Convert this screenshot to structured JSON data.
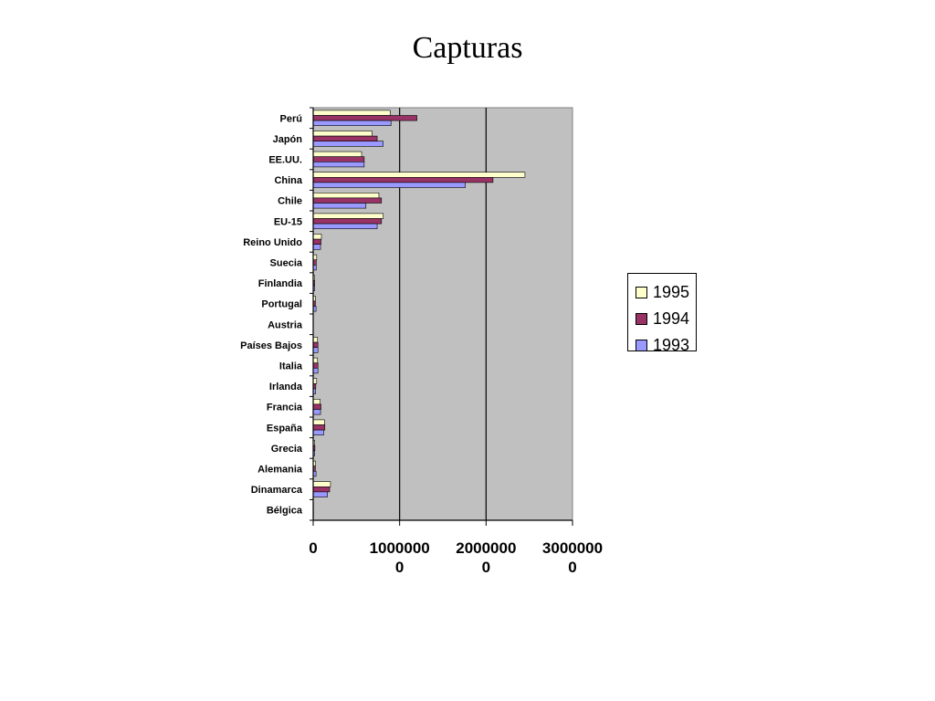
{
  "title": "Capturas",
  "chart_data": {
    "type": "bar",
    "orientation": "horizontal",
    "title": "Capturas",
    "xlabel": "",
    "ylabel": "",
    "xlim": [
      0,
      30000000
    ],
    "x_ticks": [
      {
        "value": 0,
        "lines": [
          "0"
        ]
      },
      {
        "value": 10000000,
        "lines": [
          "1000000",
          "0"
        ]
      },
      {
        "value": 20000000,
        "lines": [
          "2000000",
          "0"
        ]
      },
      {
        "value": 30000000,
        "lines": [
          "3000000",
          "0"
        ]
      }
    ],
    "grid": "vertical major lines",
    "legend_position": "right",
    "plot_background": "#c0c0c0",
    "categories": [
      "Perú",
      "Japón",
      "EE.UU.",
      "China",
      "Chile",
      "EU-15",
      "Reino Unido",
      "Suecia",
      "Finlandia",
      "Portugal",
      "Austria",
      "Países Bajos",
      "Italia",
      "Irlanda",
      "Francia",
      "España",
      "Grecia",
      "Alemania",
      "Dinamarca",
      "Bélgica"
    ],
    "series": [
      {
        "name": "1995",
        "color": "#ffffcc",
        "values": [
          8900000,
          6800000,
          5600000,
          24500000,
          7600000,
          8100000,
          950000,
          400000,
          170000,
          250000,
          0,
          500000,
          500000,
          400000,
          800000,
          1300000,
          170000,
          280000,
          2000000,
          30000
        ]
      },
      {
        "name": "1994",
        "color": "#993366",
        "values": [
          12000000,
          7400000,
          5900000,
          20800000,
          7900000,
          7900000,
          900000,
          350000,
          160000,
          260000,
          0,
          550000,
          550000,
          300000,
          900000,
          1350000,
          200000,
          250000,
          1900000,
          30000
        ]
      },
      {
        "name": "1993",
        "color": "#9999ff",
        "values": [
          9000000,
          8100000,
          5900000,
          17600000,
          6100000,
          7400000,
          850000,
          350000,
          180000,
          330000,
          0,
          550000,
          550000,
          280000,
          850000,
          1200000,
          180000,
          330000,
          1650000,
          30000
        ]
      }
    ]
  }
}
